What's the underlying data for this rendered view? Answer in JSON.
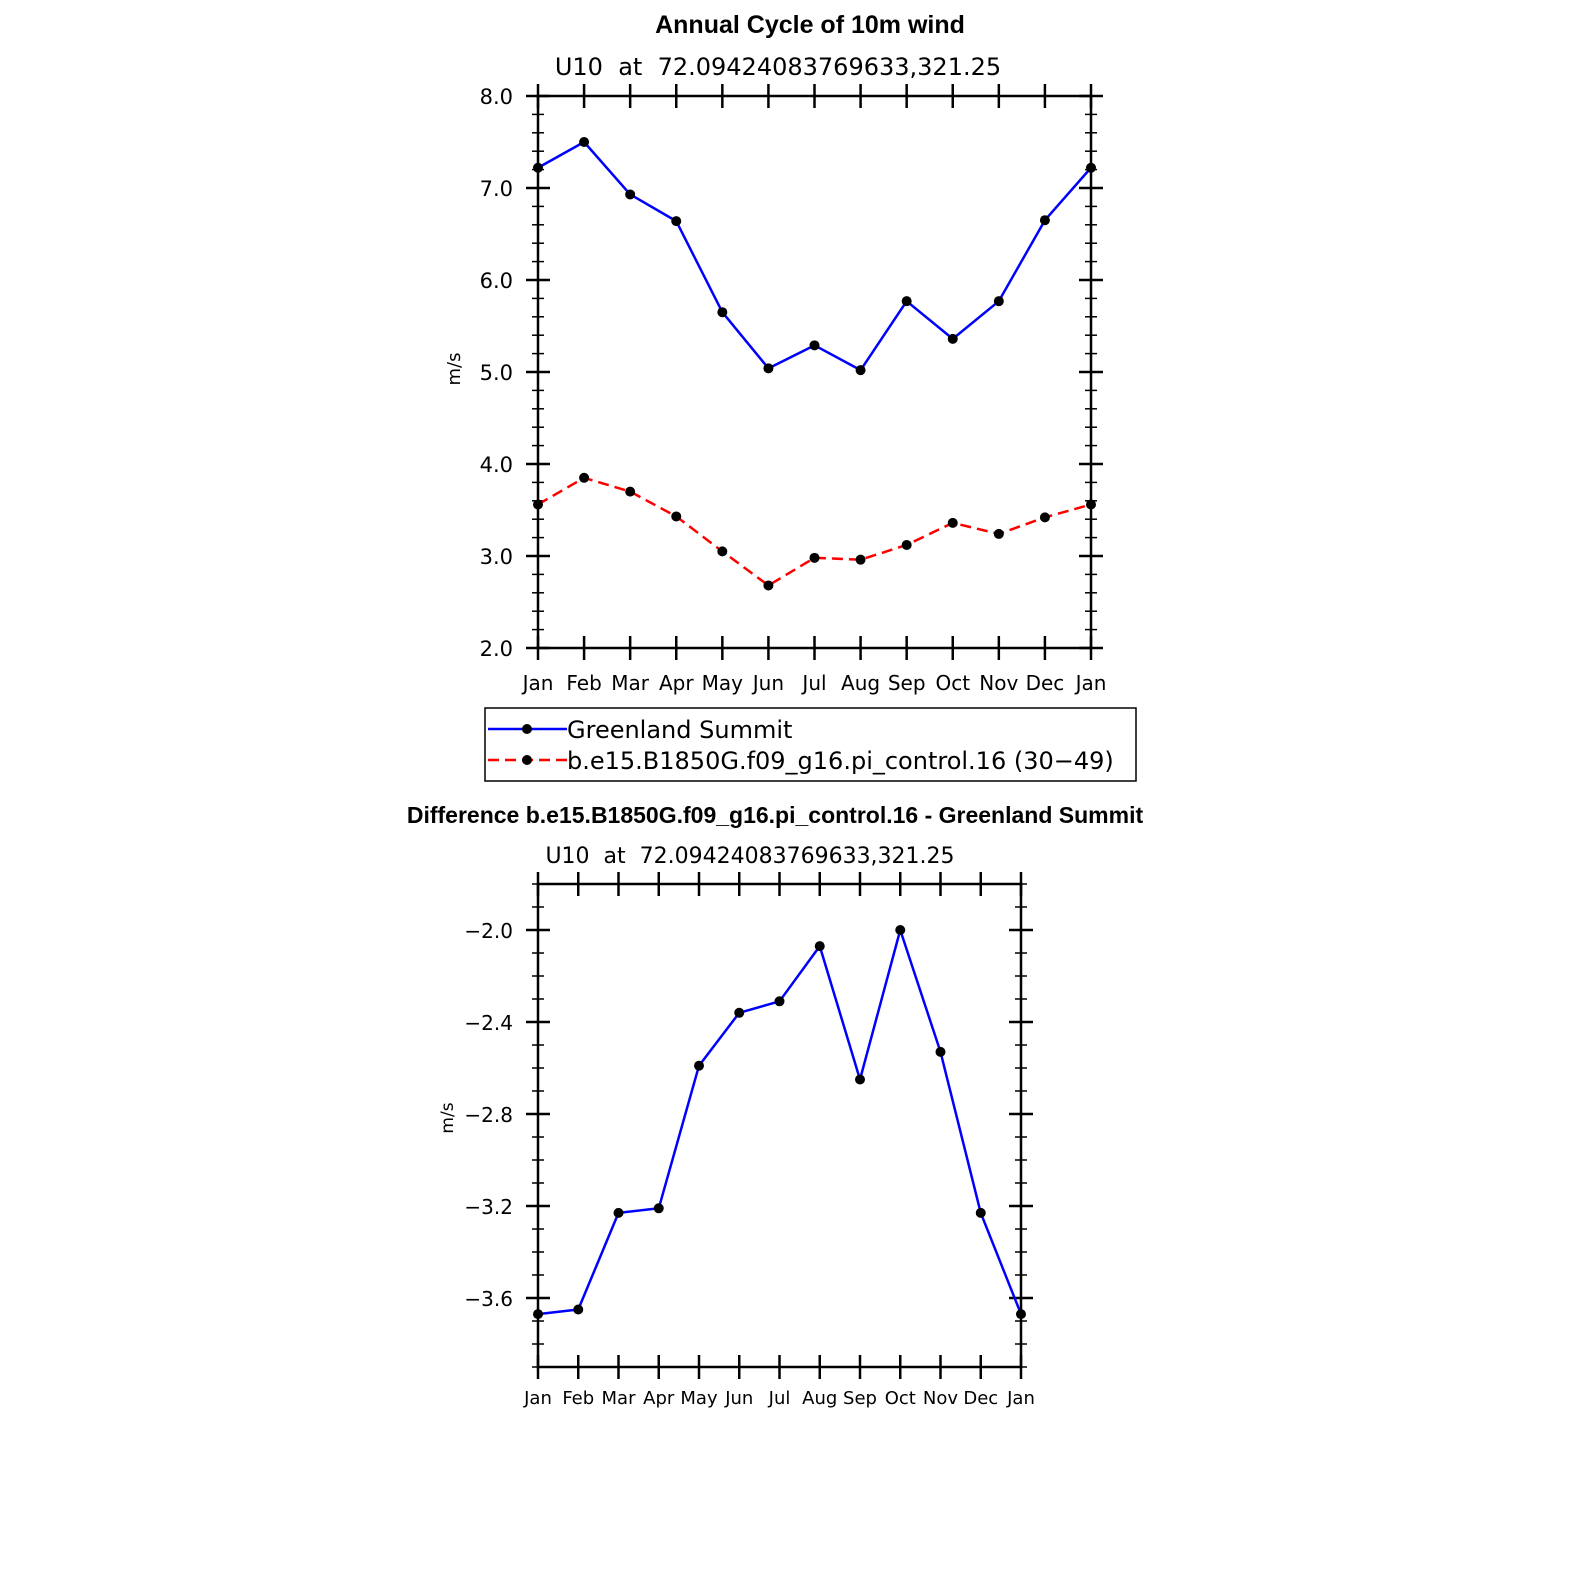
{
  "colors": {
    "observed": "#0000ff",
    "model": "#ff0000",
    "marker": "#000000"
  },
  "chart_data": [
    {
      "type": "line",
      "title": "Annual Cycle of 10m wind",
      "subtitle": "U10  at  72.09424083769633,321.25",
      "ylabel": "m/s",
      "xlabel": "",
      "ylim": [
        2.0,
        8.0
      ],
      "yticks": [
        "2.0",
        "3.0",
        "4.0",
        "5.0",
        "6.0",
        "7.0",
        "8.0"
      ],
      "ytick_values": [
        2,
        3,
        4,
        5,
        6,
        7,
        8
      ],
      "categories": [
        "Jan",
        "Feb",
        "Mar",
        "Apr",
        "May",
        "Jun",
        "Jul",
        "Aug",
        "Sep",
        "Oct",
        "Nov",
        "Dec",
        "Jan"
      ],
      "series": [
        {
          "name": "Greenland Summit",
          "style": "solid",
          "color": "#0000ff",
          "values": [
            7.22,
            7.5,
            6.93,
            6.64,
            5.65,
            5.04,
            5.29,
            5.02,
            5.77,
            5.36,
            5.77,
            6.65,
            7.22
          ]
        },
        {
          "name": "b.e15.B1850G.f09_g16.pi_control.16 (30−49)",
          "style": "dashed",
          "color": "#ff0000",
          "values": [
            3.56,
            3.85,
            3.7,
            3.43,
            3.05,
            2.68,
            2.98,
            2.96,
            3.12,
            3.36,
            3.24,
            3.42,
            3.56
          ]
        }
      ],
      "legend": "below"
    },
    {
      "type": "line",
      "title": "Difference b.e15.B1850G.f09_g16.pi_control.16 - Greenland Summit",
      "subtitle": "U10  at  72.09424083769633,321.25",
      "ylabel": "m/s",
      "xlabel": "",
      "ylim": [
        -3.9,
        -1.8
      ],
      "yticks": [
        "−2.0",
        "−2.4",
        "−2.8",
        "−3.2",
        "−3.6"
      ],
      "ytick_values": [
        -2.0,
        -2.4,
        -2.8,
        -3.2,
        -3.6
      ],
      "categories": [
        "Jan",
        "Feb",
        "Mar",
        "Apr",
        "May",
        "Jun",
        "Jul",
        "Aug",
        "Sep",
        "Oct",
        "Nov",
        "Dec",
        "Jan"
      ],
      "series": [
        {
          "style": "solid",
          "color": "#0000ff",
          "values": [
            -3.67,
            -3.65,
            -3.23,
            -3.21,
            -2.59,
            -2.36,
            -2.31,
            -2.07,
            -2.65,
            -2.0,
            -2.53,
            -3.23,
            -3.67
          ]
        }
      ]
    }
  ]
}
